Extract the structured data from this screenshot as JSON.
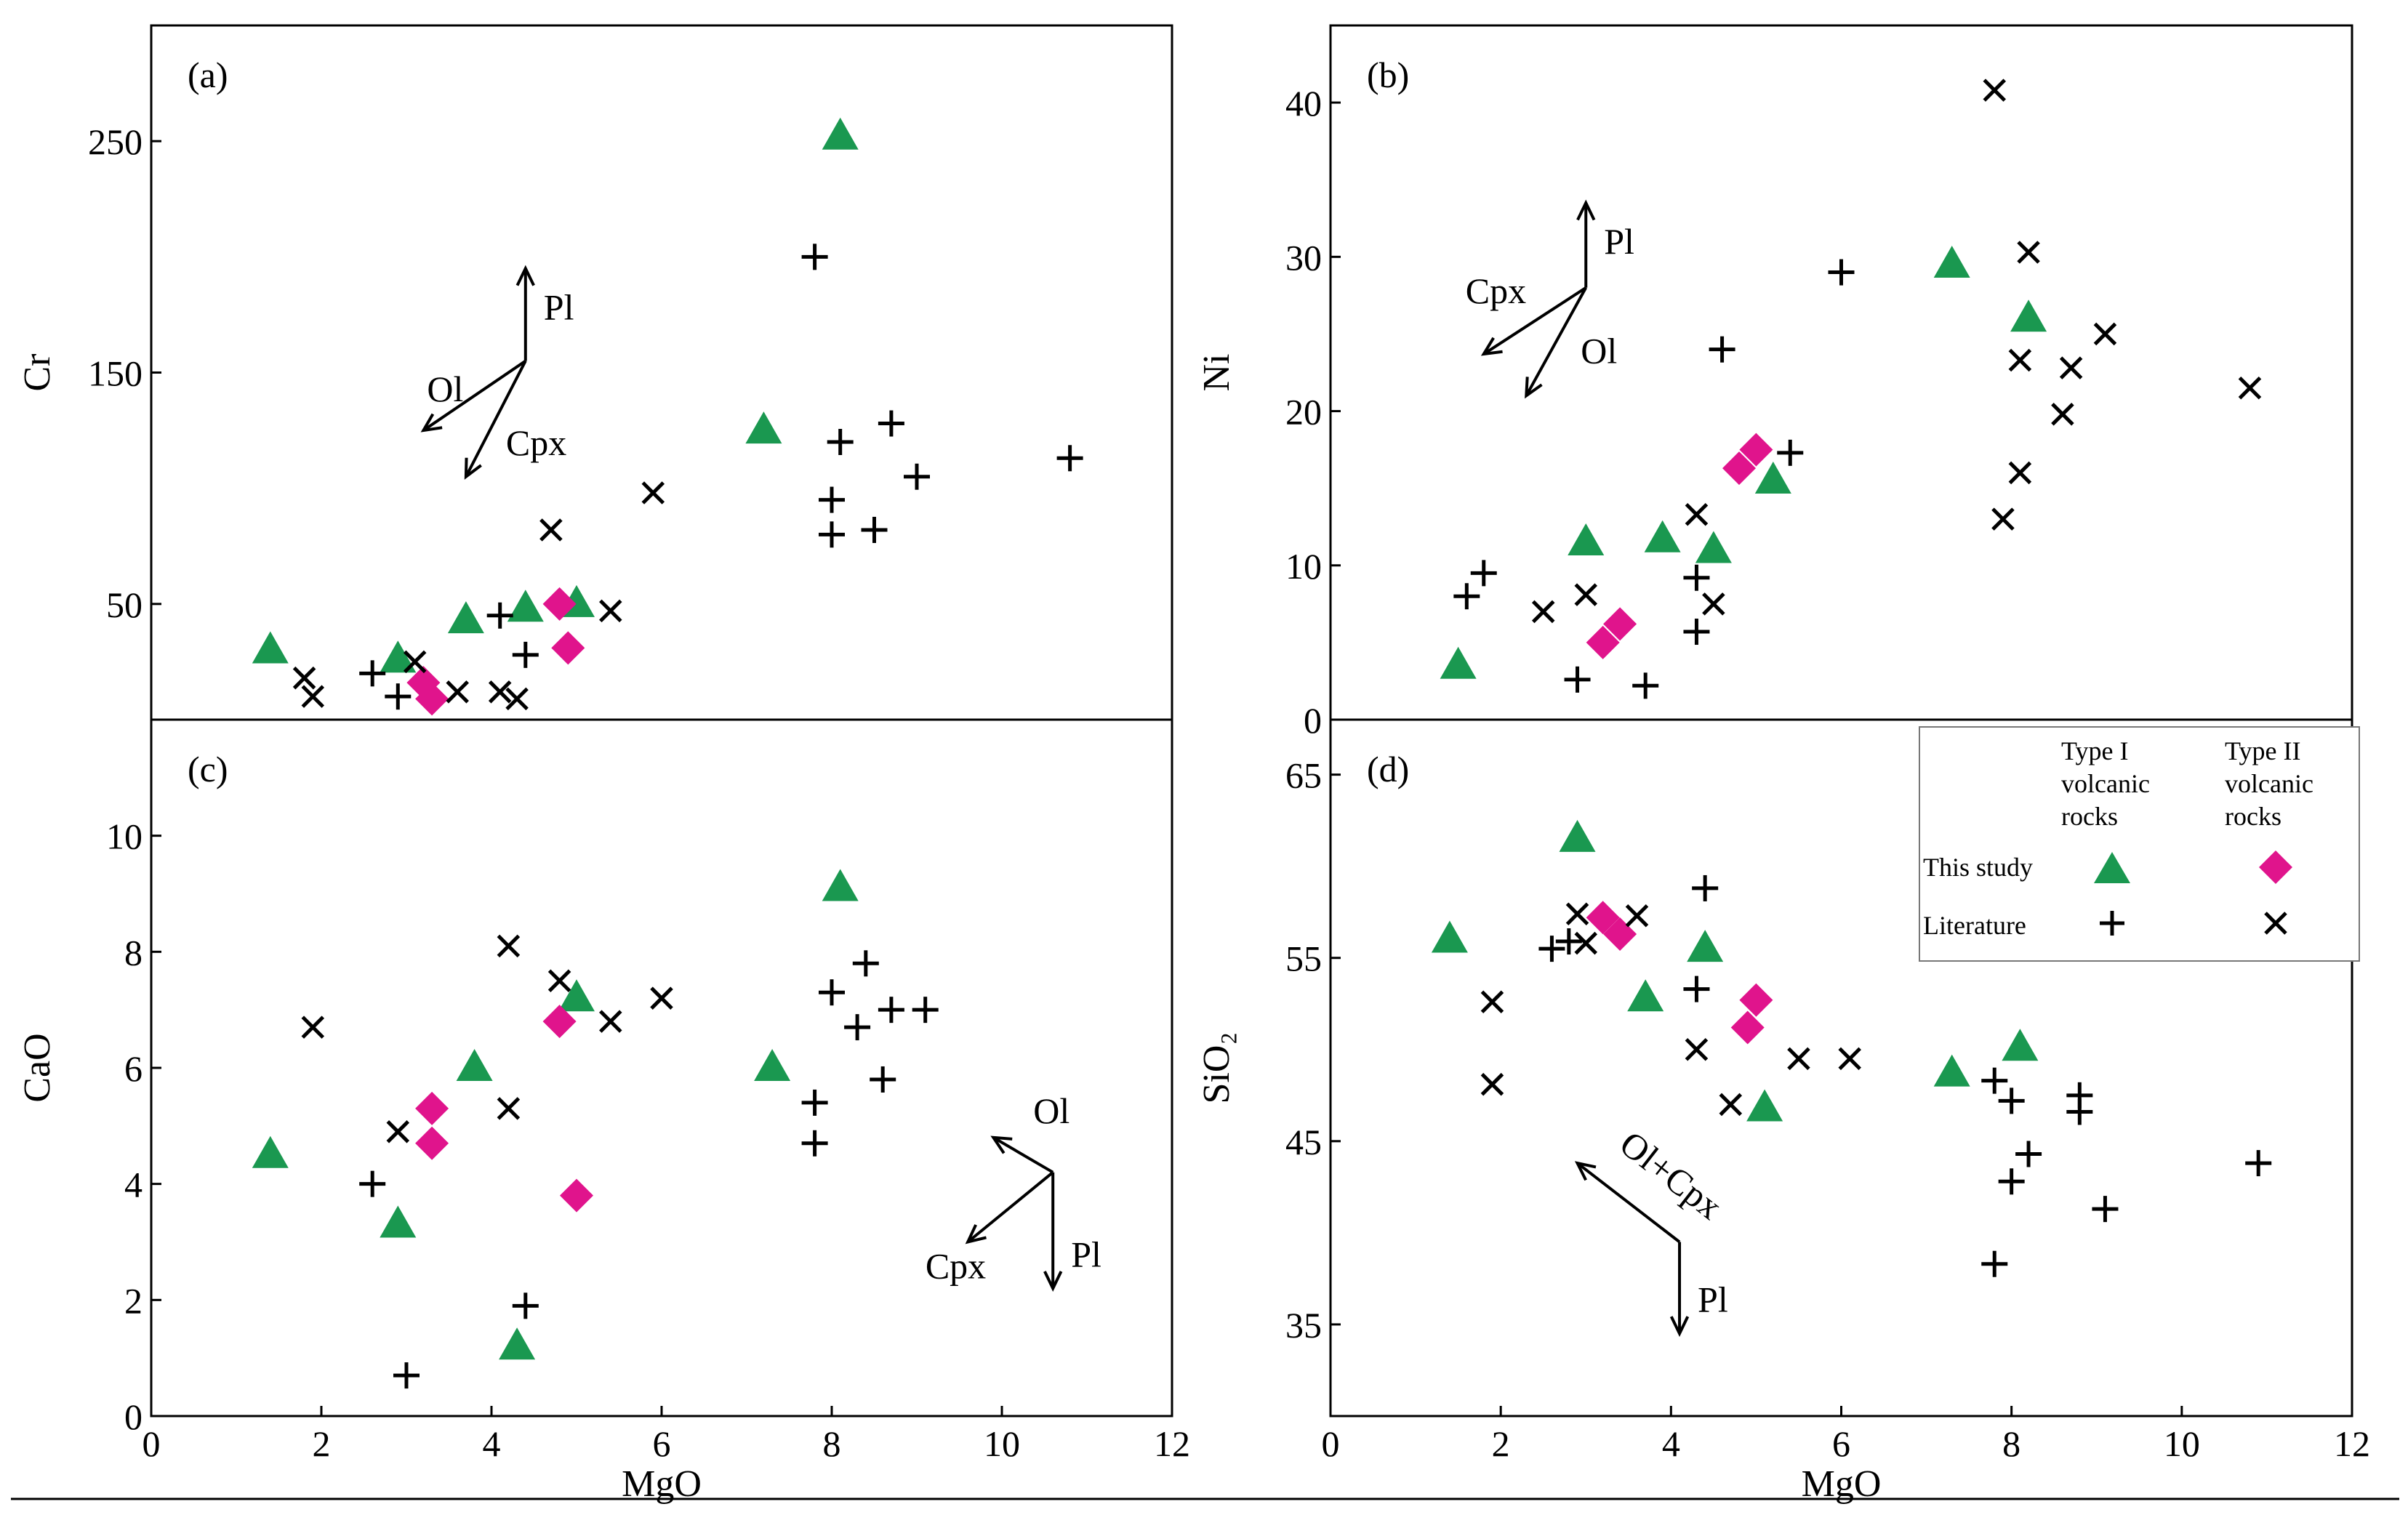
{
  "colors": {
    "type1": "#1a9850",
    "type2": "#e0148c",
    "literature": "#000000"
  },
  "legend": {
    "col1": [
      "Type I",
      "volcanic",
      "rocks"
    ],
    "col2": [
      "Type II",
      "volcanic",
      "rocks"
    ],
    "row1": "This study",
    "row2": "Literature"
  },
  "chart_data": [
    {
      "id": "a",
      "type": "scatter",
      "tag": "(a)",
      "xlabel": "",
      "ylabel": "Cr",
      "xlim": [
        0,
        12
      ],
      "ylim": [
        0,
        300
      ],
      "yticks": [
        50,
        150,
        250
      ],
      "xticks": [],
      "vectors": {
        "origin": [
          4.4,
          155
        ],
        "arrows": [
          {
            "label": "Pl",
            "to": [
              4.4,
              195
            ]
          },
          {
            "label": "Ol",
            "to": [
              3.2,
              125
            ]
          },
          {
            "label": "Cpx",
            "to": [
              3.7,
              105
            ]
          }
        ]
      },
      "series": [
        {
          "name": "This study Type I",
          "marker": "triangle",
          "points": [
            [
              1.4,
              30
            ],
            [
              2.9,
              26
            ],
            [
              3.7,
              43
            ],
            [
              4.4,
              48
            ],
            [
              5.0,
              50
            ],
            [
              7.2,
              125
            ],
            [
              8.1,
              252
            ]
          ]
        },
        {
          "name": "This study Type II",
          "marker": "diamond",
          "points": [
            [
              3.2,
              16
            ],
            [
              3.3,
              9
            ],
            [
              4.8,
              50
            ],
            [
              4.9,
              31
            ]
          ]
        },
        {
          "name": "Literature Type I",
          "marker": "plus",
          "points": [
            [
              2.6,
              20
            ],
            [
              2.9,
              10
            ],
            [
              4.1,
              45
            ],
            [
              4.4,
              28
            ],
            [
              7.8,
              200
            ],
            [
              8.0,
              95
            ],
            [
              8.1,
              120
            ],
            [
              8.7,
              128
            ],
            [
              8.0,
              80
            ],
            [
              8.5,
              82
            ],
            [
              9.0,
              105
            ],
            [
              10.8,
              113
            ]
          ]
        },
        {
          "name": "Literature Type II",
          "marker": "cross",
          "points": [
            [
              1.8,
              18
            ],
            [
              1.9,
              10
            ],
            [
              3.1,
              25
            ],
            [
              3.6,
              12
            ],
            [
              4.1,
              12
            ],
            [
              4.3,
              9
            ],
            [
              4.7,
              82
            ],
            [
              5.4,
              47
            ],
            [
              5.9,
              98
            ]
          ]
        }
      ]
    },
    {
      "id": "b",
      "type": "scatter",
      "tag": "(b)",
      "xlabel": "",
      "ylabel": "Ni",
      "xlim": [
        0,
        12
      ],
      "ylim": [
        0,
        45
      ],
      "yticks": [
        0,
        10,
        20,
        30,
        40
      ],
      "xticks": [],
      "vectors": {
        "origin": [
          3.0,
          28
        ],
        "arrows": [
          {
            "label": "Pl",
            "to": [
              3.0,
              33.5
            ]
          },
          {
            "label": "Cpx",
            "to": [
              1.8,
              23.7
            ]
          },
          {
            "label": "Ol",
            "to": [
              2.3,
              21
            ]
          }
        ]
      },
      "series": [
        {
          "name": "This study Type I",
          "marker": "triangle",
          "points": [
            [
              1.5,
              3.5
            ],
            [
              3.0,
              11.5
            ],
            [
              3.9,
              11.7
            ],
            [
              4.5,
              11.0
            ],
            [
              5.2,
              15.5
            ],
            [
              7.3,
              29.5
            ],
            [
              8.2,
              26
            ]
          ]
        },
        {
          "name": "This study Type II",
          "marker": "diamond",
          "points": [
            [
              3.2,
              5.0
            ],
            [
              3.4,
              6.2
            ],
            [
              4.8,
              16.3
            ],
            [
              5.0,
              17.5
            ]
          ]
        },
        {
          "name": "Literature Type I",
          "marker": "plus",
          "points": [
            [
              1.6,
              8
            ],
            [
              1.8,
              9.5
            ],
            [
              2.9,
              2.6
            ],
            [
              3.7,
              2.2
            ],
            [
              4.3,
              9.2
            ],
            [
              4.3,
              5.7
            ],
            [
              4.6,
              24
            ],
            [
              5.4,
              17.3
            ],
            [
              6.0,
              29
            ]
          ]
        },
        {
          "name": "Literature Type II",
          "marker": "cross",
          "points": [
            [
              2.5,
              7
            ],
            [
              3.0,
              8.1
            ],
            [
              4.3,
              13.3
            ],
            [
              4.5,
              7.5
            ],
            [
              7.8,
              40.8
            ],
            [
              8.2,
              30.3
            ],
            [
              8.1,
              23.3
            ],
            [
              8.1,
              16
            ],
            [
              7.9,
              13
            ],
            [
              8.7,
              22.8
            ],
            [
              8.6,
              19.8
            ],
            [
              9.1,
              25
            ],
            [
              10.8,
              21.5
            ]
          ]
        }
      ]
    },
    {
      "id": "c",
      "type": "scatter",
      "tag": "(c)",
      "xlabel": "MgO",
      "ylabel": "CaO",
      "xlim": [
        0,
        12
      ],
      "ylim": [
        0,
        12
      ],
      "yticks": [
        0,
        2,
        4,
        6,
        8,
        10
      ],
      "xticks": [
        0,
        2,
        4,
        6,
        8,
        10,
        12
      ],
      "vectors": {
        "origin": [
          10.6,
          4.2
        ],
        "arrows": [
          {
            "label": "Ol",
            "to": [
              9.9,
              4.8
            ]
          },
          {
            "label": "Cpx",
            "to": [
              9.6,
              3.0
            ]
          },
          {
            "label": "Pl",
            "to": [
              10.6,
              2.2
            ]
          }
        ]
      },
      "series": [
        {
          "name": "This study Type I",
          "marker": "triangle",
          "points": [
            [
              1.4,
              4.5
            ],
            [
              2.9,
              3.3
            ],
            [
              3.8,
              6.0
            ],
            [
              4.3,
              1.2
            ],
            [
              5.0,
              7.2
            ],
            [
              7.3,
              6.0
            ],
            [
              8.1,
              9.1
            ]
          ]
        },
        {
          "name": "This study Type II",
          "marker": "diamond",
          "points": [
            [
              3.3,
              5.3
            ],
            [
              3.3,
              4.7
            ],
            [
              4.8,
              6.8
            ],
            [
              5.0,
              3.8
            ]
          ]
        },
        {
          "name": "Literature Type I",
          "marker": "plus",
          "points": [
            [
              2.6,
              4.0
            ],
            [
              3.0,
              0.7
            ],
            [
              4.4,
              1.9
            ],
            [
              7.8,
              5.4
            ],
            [
              7.8,
              4.7
            ],
            [
              8.0,
              7.3
            ],
            [
              8.3,
              6.7
            ],
            [
              8.4,
              7.8
            ],
            [
              8.6,
              5.8
            ],
            [
              8.7,
              7.0
            ],
            [
              9.1,
              7.0
            ]
          ]
        },
        {
          "name": "Literature Type II",
          "marker": "cross",
          "points": [
            [
              1.9,
              6.7
            ],
            [
              2.9,
              4.9
            ],
            [
              4.2,
              8.1
            ],
            [
              4.2,
              5.3
            ],
            [
              4.8,
              7.5
            ],
            [
              5.4,
              6.8
            ],
            [
              6.0,
              7.2
            ]
          ]
        }
      ]
    },
    {
      "id": "d",
      "type": "scatter",
      "tag": "(d)",
      "xlabel": "MgO",
      "ylabel": "SiO₂",
      "xlim": [
        0,
        12
      ],
      "ylim": [
        30,
        68
      ],
      "yticks": [
        35,
        45,
        55,
        65
      ],
      "xticks": [
        0,
        2,
        4,
        6,
        8,
        10,
        12
      ],
      "vectors": {
        "origin": [
          4.1,
          39.5
        ],
        "arrows": [
          {
            "label": "Ol+Cpx",
            "to": [
              2.9,
              43.8
            ]
          },
          {
            "label": "Pl",
            "to": [
              4.1,
              34.5
            ]
          }
        ]
      },
      "series": [
        {
          "name": "This study Type I",
          "marker": "triangle",
          "points": [
            [
              1.4,
              56
            ],
            [
              2.9,
              61.5
            ],
            [
              3.7,
              52.8
            ],
            [
              4.4,
              55.5
            ],
            [
              5.1,
              46.8
            ],
            [
              7.3,
              48.7
            ],
            [
              8.1,
              50.1
            ]
          ]
        },
        {
          "name": "This study Type II",
          "marker": "diamond",
          "points": [
            [
              3.2,
              57.2
            ],
            [
              3.4,
              56.3
            ],
            [
              4.9,
              51.2
            ],
            [
              5.0,
              52.7
            ]
          ]
        },
        {
          "name": "Literature Type I",
          "marker": "plus",
          "points": [
            [
              2.6,
              55.5
            ],
            [
              2.8,
              55.9
            ],
            [
              4.3,
              53.3
            ],
            [
              4.4,
              58.8
            ],
            [
              7.8,
              48.3
            ],
            [
              7.8,
              38.3
            ],
            [
              8.0,
              47.2
            ],
            [
              8.0,
              42.8
            ],
            [
              8.2,
              44.3
            ],
            [
              8.8,
              47.5
            ],
            [
              8.8,
              46.6
            ],
            [
              9.1,
              41.3
            ],
            [
              10.9,
              43.8
            ]
          ]
        },
        {
          "name": "Literature Type II",
          "marker": "cross",
          "points": [
            [
              1.9,
              52.6
            ],
            [
              1.9,
              48.1
            ],
            [
              2.9,
              57.4
            ],
            [
              3.0,
              55.8
            ],
            [
              3.6,
              57.3
            ],
            [
              4.3,
              50.0
            ],
            [
              4.7,
              47.0
            ],
            [
              5.5,
              49.5
            ],
            [
              6.1,
              49.5
            ]
          ]
        }
      ]
    }
  ]
}
